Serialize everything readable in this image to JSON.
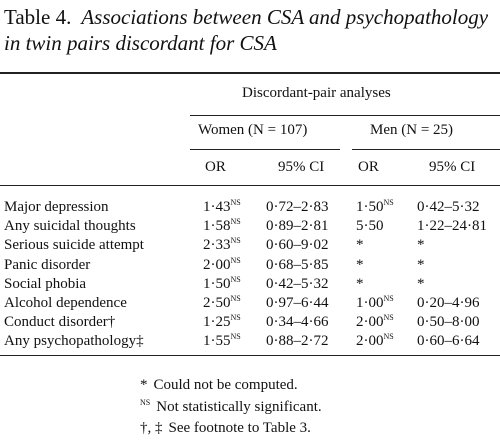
{
  "title": {
    "label": "Table 4.",
    "caption": "Associations between CSA and psychopathology in twin pairs discordant for CSA"
  },
  "table": {
    "spanner": "Discordant-pair analyses",
    "groups": [
      "Women (N = 107)",
      "Men (N = 25)"
    ],
    "columns": [
      "OR",
      "95% CI",
      "OR",
      "95% CI"
    ],
    "rows": [
      {
        "label": "Major depression",
        "cells": [
          {
            "text": "1·43",
            "note": "NS"
          },
          {
            "text": "0·72–2·83"
          },
          {
            "text": "1·50",
            "note": "NS"
          },
          {
            "text": "0·42–5·32"
          }
        ]
      },
      {
        "label": "Any suicidal thoughts",
        "cells": [
          {
            "text": "1·58",
            "note": "NS"
          },
          {
            "text": "0·89–2·81"
          },
          {
            "text": "5·50"
          },
          {
            "text": "1·22–24·81"
          }
        ]
      },
      {
        "label": "Serious suicide attempt",
        "cells": [
          {
            "text": "2·33",
            "note": "NS"
          },
          {
            "text": "0·60–9·02"
          },
          {
            "text": "*"
          },
          {
            "text": "*"
          }
        ]
      },
      {
        "label": "Panic disorder",
        "cells": [
          {
            "text": "2·00",
            "note": "NS"
          },
          {
            "text": "0·68–5·85"
          },
          {
            "text": "*"
          },
          {
            "text": "*"
          }
        ]
      },
      {
        "label": "Social phobia",
        "cells": [
          {
            "text": "1·50",
            "note": "NS"
          },
          {
            "text": "0·42–5·32"
          },
          {
            "text": "*"
          },
          {
            "text": "*"
          }
        ]
      },
      {
        "label": "Alcohol dependence",
        "cells": [
          {
            "text": "2·50",
            "note": "NS"
          },
          {
            "text": "0·97–6·44"
          },
          {
            "text": "1·00",
            "note": "NS"
          },
          {
            "text": "0·20–4·96"
          }
        ]
      },
      {
        "label": "Conduct disorder†",
        "cells": [
          {
            "text": "1·25",
            "note": "NS"
          },
          {
            "text": "0·34–4·66"
          },
          {
            "text": "2·00",
            "note": "NS"
          },
          {
            "text": "0·50–8·00"
          }
        ]
      },
      {
        "label": "Any psychopathology‡",
        "cells": [
          {
            "text": "1·55",
            "note": "NS"
          },
          {
            "text": "0·88–2·72"
          },
          {
            "text": "2·00",
            "note": "NS"
          },
          {
            "text": "0·60–6·64"
          }
        ]
      }
    ]
  },
  "footnotes": [
    {
      "symbol": "*",
      "text": "Could not be computed."
    },
    {
      "symbol": "NS",
      "text": "Not statistically significant."
    },
    {
      "symbol": "†, ‡",
      "text": "See footnote to Table 3."
    }
  ]
}
